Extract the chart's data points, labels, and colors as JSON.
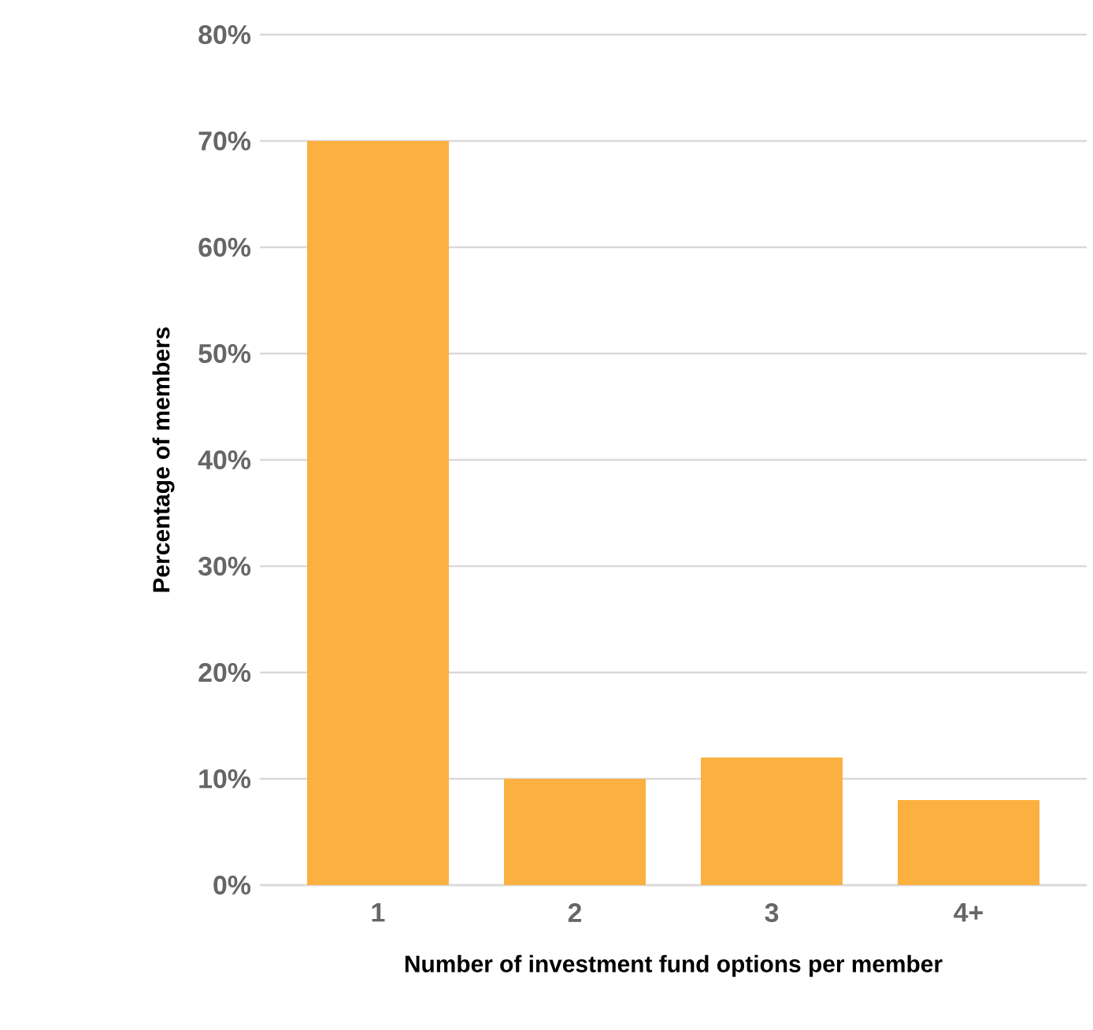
{
  "chart_data": {
    "type": "bar",
    "xlabel": "Number of investment fund options per member",
    "ylabel": "Percentage of members",
    "categories": [
      "1",
      "2",
      "3",
      "4+"
    ],
    "values": [
      70,
      10,
      12,
      8
    ],
    "color": "#fbb040",
    "ylim": [
      0,
      80
    ],
    "yticks": [
      {
        "value": 0,
        "label": "0%"
      },
      {
        "value": 10,
        "label": "10%"
      },
      {
        "value": 20,
        "label": "20%"
      },
      {
        "value": 30,
        "label": "30%"
      },
      {
        "value": 40,
        "label": "40%"
      },
      {
        "value": 50,
        "label": "50%"
      },
      {
        "value": 60,
        "label": "60%"
      },
      {
        "value": 70,
        "label": "70%"
      },
      {
        "value": 80,
        "label": "80%"
      }
    ],
    "grid": "y"
  }
}
